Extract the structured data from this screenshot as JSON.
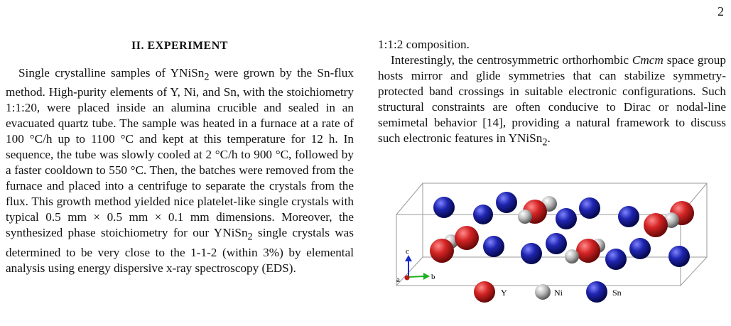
{
  "page_number": "2",
  "section": {
    "heading": "II.   EXPERIMENT",
    "paragraph": [
      "Single crystalline samples of YNiSn",
      "2",
      " were grown by the Sn-flux method. High-purity elements of Y, Ni, and Sn, with the stoichiometry 1:1:20, were placed inside an alumina crucible and sealed in an evacuated quartz tube. The sample was heated in a furnace at a rate of 100 °C/h up to 1100 °C and kept at this temperature for 12 h. In sequence, the tube was slowly cooled at 2 °C/h to 900 °C, followed by a faster cooldown to 550 °C. Then, the batches were removed from the furnace and placed into a centrifuge to separate the crystals from the flux. This growth method yielded nice platelet-like single crystals with typical 0.5 mm × 0.5 mm × 0.1 mm dimensions. Moreover, the synthesized phase stoichiometry for our YNiSn",
      "2",
      " single crystals was determined to be very close to the 1-1-2 (within 3%) by elemental analysis using energy dispersive x-ray spectroscopy (EDS)."
    ]
  },
  "right_column": {
    "continuation": "1:1:2 composition.",
    "paragraph": [
      "Interestingly, the centrosymmetric orthorhombic ",
      "Cmcm",
      " space group hosts mirror and glide symmetries that can stabilize symmetry-protected band crossings in suitable electronic configurations. Such structural constraints are often conducive to Dirac or nodal-line semimetal behavior [14], providing a natural framework to discuss such electronic features in YNiSn",
      "2",
      "."
    ]
  },
  "figure": {
    "axes": {
      "a": "a",
      "b": "b",
      "c": "c"
    },
    "legend": [
      {
        "label": "Y",
        "color": "#cc1f1f"
      },
      {
        "label": "Ni",
        "color": "#b5b5b5"
      },
      {
        "label": "Sn",
        "color": "#1a1fa0"
      }
    ]
  }
}
